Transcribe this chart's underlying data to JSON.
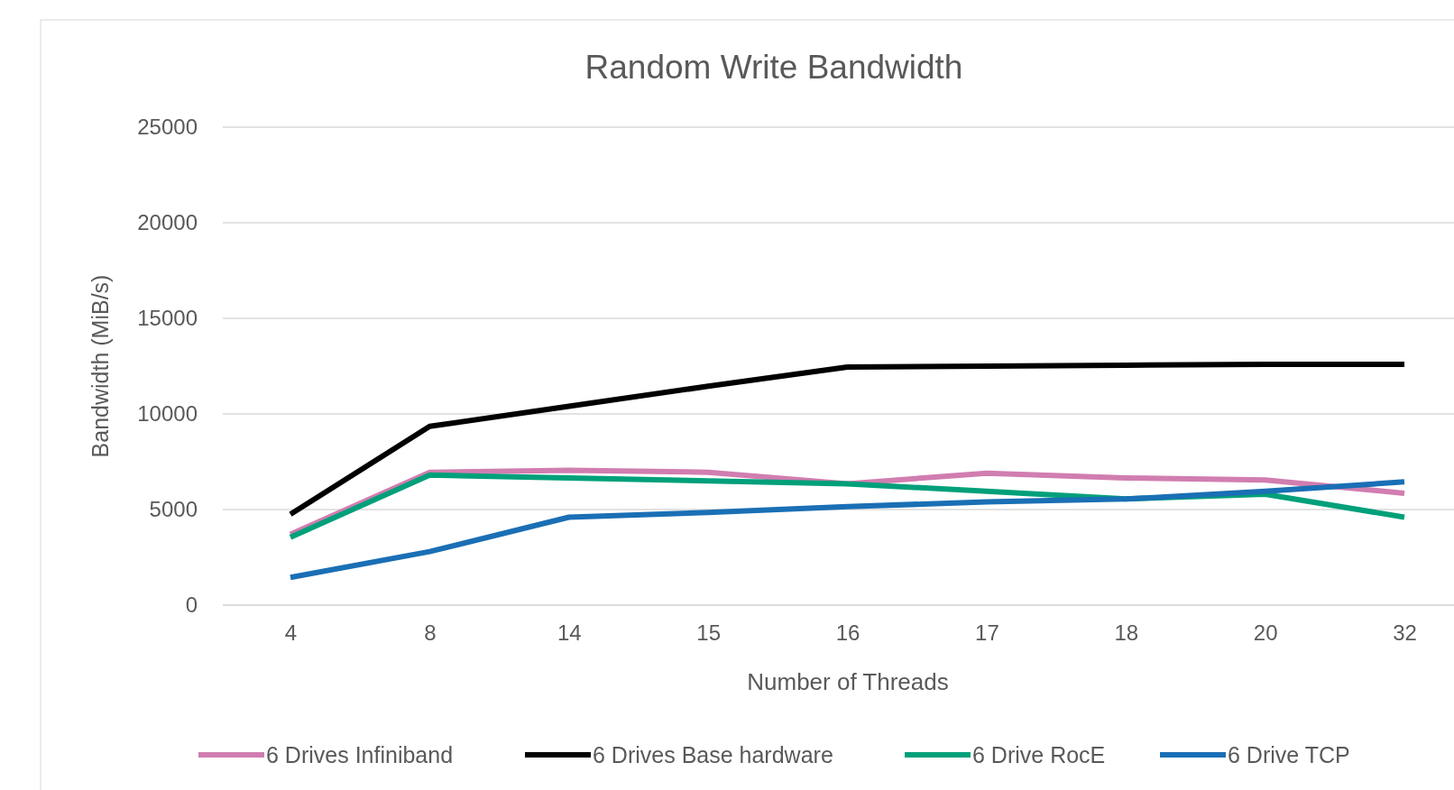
{
  "chart_data": {
    "type": "line",
    "title": "Random Write Bandwidth",
    "xlabel": "Number of Threads",
    "ylabel": "Bandwidth (MiB/s)",
    "categories": [
      "4",
      "8",
      "14",
      "15",
      "16",
      "17",
      "18",
      "20",
      "32"
    ],
    "ylim": [
      0,
      25000
    ],
    "yticks": [
      0,
      5000,
      10000,
      15000,
      20000,
      25000
    ],
    "grid": "y",
    "legend": "bottom",
    "marker": "none",
    "line_style": "solid",
    "series": [
      {
        "name": "6 Drives Infiniband",
        "color": "#d17db0",
        "values": [
          3700,
          6950,
          7050,
          6950,
          6350,
          6900,
          6650,
          6550,
          5850
        ]
      },
      {
        "name": "6 Drives Base hardware",
        "color": "#000000",
        "values": [
          4750,
          9350,
          10400,
          11450,
          12450,
          12500,
          12550,
          12600,
          12600
        ]
      },
      {
        "name": "6 Drive RocE",
        "color": "#00a07a",
        "values": [
          3550,
          6800,
          6650,
          6500,
          6350,
          5950,
          5550,
          5800,
          4600
        ]
      },
      {
        "name": "6 Drive TCP",
        "color": "#1a6fb5",
        "values": [
          1450,
          2800,
          4600,
          4850,
          5150,
          5400,
          5550,
          5950,
          6450
        ]
      }
    ]
  }
}
